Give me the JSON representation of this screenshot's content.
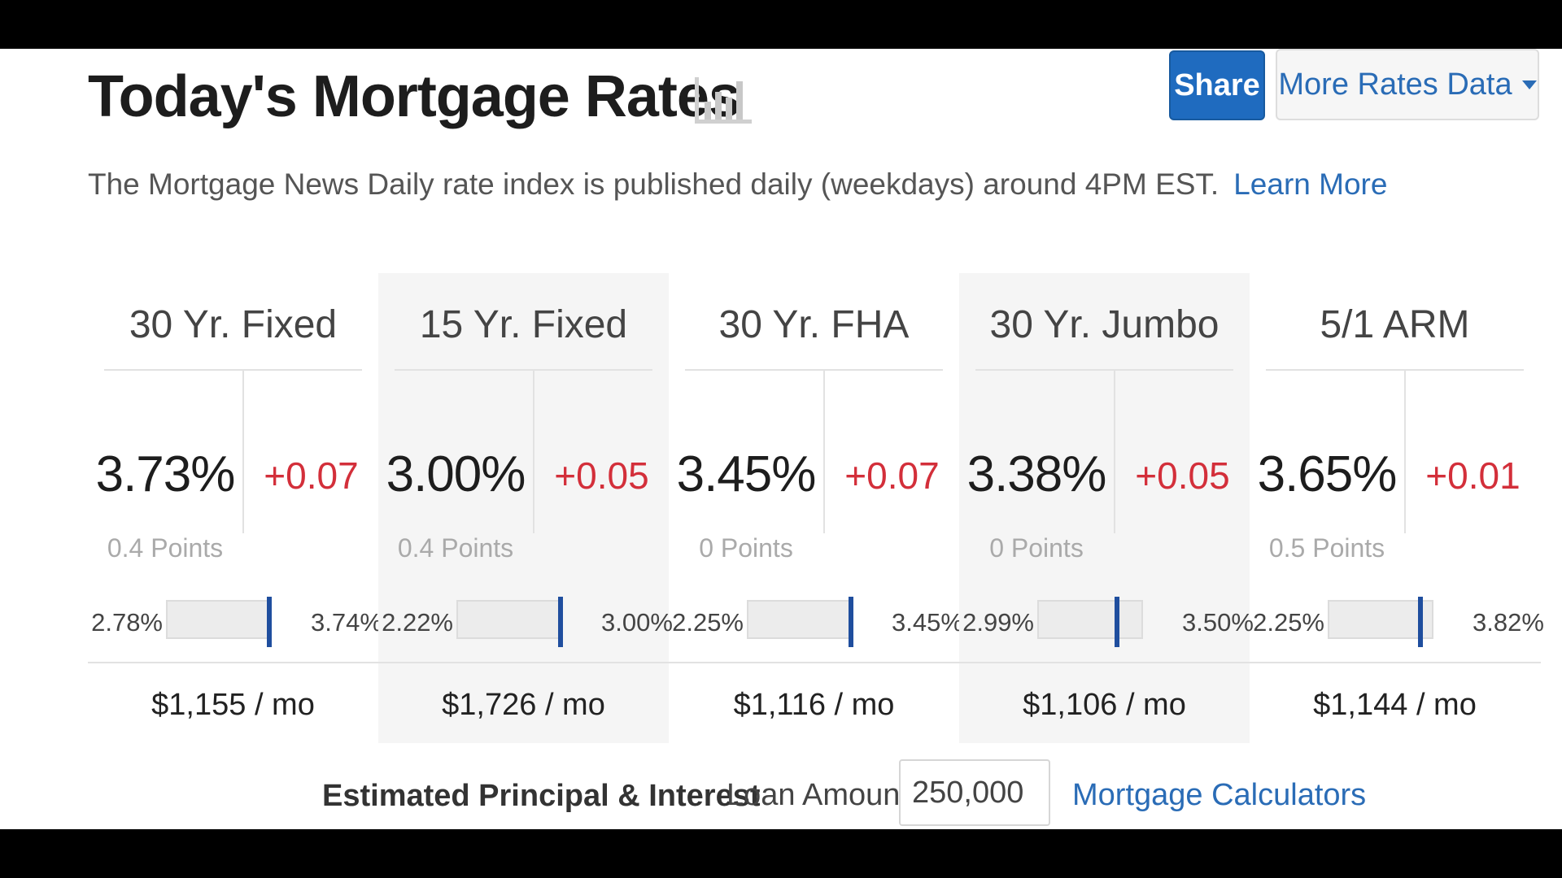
{
  "header": {
    "title": "Today's Mortgage Rates",
    "chart_icon": "bar-chart-icon",
    "subtitle": "The Mortgage News Daily rate index is published daily (weekdays) around 4PM EST.",
    "learn_more": "Learn More",
    "share_label": "Share",
    "more_rates_label": "More Rates Data"
  },
  "products": [
    {
      "name": "30 Yr. Fixed",
      "rate": "3.73%",
      "change": "+0.07",
      "points": "0.4 Points",
      "range_low": "2.78%",
      "range_high": "3.74%",
      "range_position": 0.99,
      "payment": "$1,155 / mo"
    },
    {
      "name": "15 Yr. Fixed",
      "rate": "3.00%",
      "change": "+0.05",
      "points": "0.4 Points",
      "range_low": "2.22%",
      "range_high": "3.00%",
      "range_position": 1.0,
      "payment": "$1,726 / mo"
    },
    {
      "name": "30 Yr. FHA",
      "rate": "3.45%",
      "change": "+0.07",
      "points": "0 Points",
      "range_low": "2.25%",
      "range_high": "3.45%",
      "range_position": 1.0,
      "payment": "$1,116 / mo"
    },
    {
      "name": "30 Yr. Jumbo",
      "rate": "3.38%",
      "change": "+0.05",
      "points": "0 Points",
      "range_low": "2.99%",
      "range_high": "3.50%",
      "range_position": 0.76,
      "payment": "$1,106 / mo"
    },
    {
      "name": "5/1 ARM",
      "rate": "3.65%",
      "change": "+0.01",
      "points": "0.5 Points",
      "range_low": "2.25%",
      "range_high": "3.82%",
      "range_position": 0.89,
      "payment": "$1,144 / mo"
    }
  ],
  "footer": {
    "estimate_label": "Estimated Principal & Interest",
    "loan_label": "Loan Amount:",
    "loan_value": "250,000",
    "calculators_link": "Mortgage Calculators"
  },
  "colors": {
    "accent": "#1f6bbf",
    "link": "#2a6cb6",
    "negative_change": "#d32f3a",
    "range_marker": "#1f4e9e"
  }
}
